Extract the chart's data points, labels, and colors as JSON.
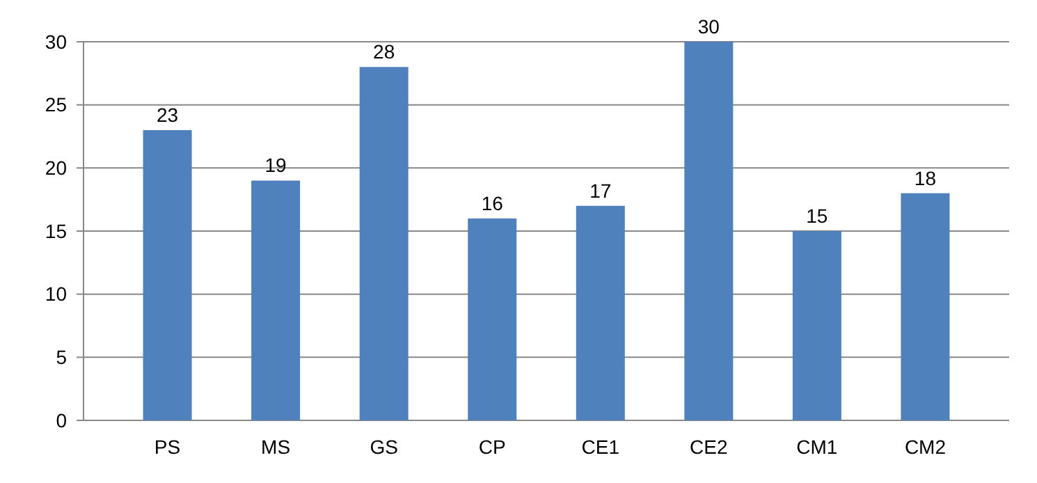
{
  "chart_data": {
    "type": "bar",
    "categories": [
      "PS",
      "MS",
      "GS",
      "CP",
      "CE1",
      "CE2",
      "CM1",
      "CM2"
    ],
    "values": [
      23,
      19,
      28,
      16,
      17,
      30,
      15,
      18
    ],
    "color": "#4f81bd",
    "ylim": [
      0,
      30
    ],
    "yticks": [
      0,
      5,
      10,
      15,
      20,
      25,
      30
    ],
    "grid": "y",
    "data_labels": true
  }
}
